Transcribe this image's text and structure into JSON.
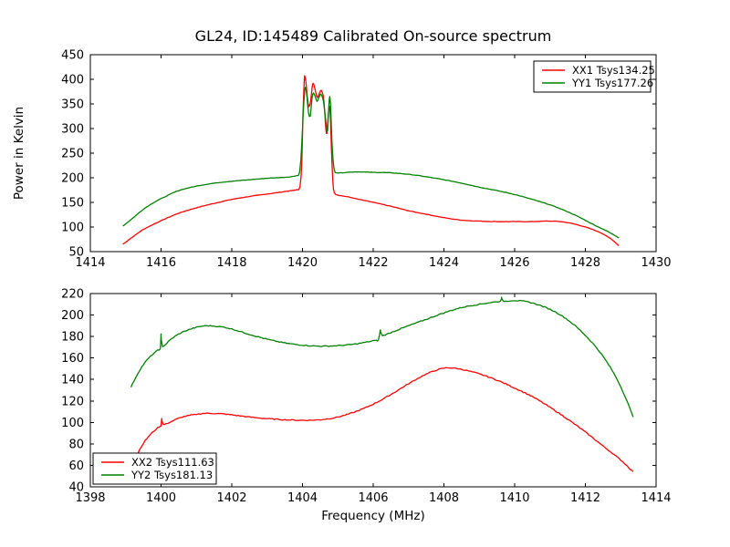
{
  "figure": {
    "title": "GL24, ID:145489 Calibrated On-source spectrum",
    "background": "#ffffff",
    "axis_color": "#000000"
  },
  "chart_data": [
    {
      "type": "line",
      "title": "GL24, ID:145489 Calibrated On-source spectrum",
      "xlabel": "",
      "ylabel": "Power in Kelvin",
      "xlim": [
        1414,
        1430
      ],
      "ylim": [
        50,
        450
      ],
      "xticks": [
        1414,
        1416,
        1418,
        1420,
        1422,
        1424,
        1426,
        1428,
        1430
      ],
      "yticks": [
        50,
        100,
        150,
        200,
        250,
        300,
        350,
        400,
        450
      ],
      "grid": false,
      "legend": {
        "position": "top-right",
        "entries": [
          {
            "label": "XX1 Tsys134.25",
            "color": "#ff0000"
          },
          {
            "label": "YY1 Tsys177.26",
            "color": "#008000"
          }
        ]
      },
      "series": [
        {
          "name": "XX1",
          "color": "#ff0000",
          "noise": 0.8,
          "points": [
            [
              1414.92,
              65
            ],
            [
              1415.2,
              80
            ],
            [
              1415.5,
              95
            ],
            [
              1415.8,
              106
            ],
            [
              1416.1,
              116
            ],
            [
              1416.5,
              128
            ],
            [
              1417.0,
              139
            ],
            [
              1417.5,
              148
            ],
            [
              1418.0,
              156
            ],
            [
              1418.5,
              162
            ],
            [
              1419.0,
              167
            ],
            [
              1419.4,
              171
            ],
            [
              1419.7,
              174
            ],
            [
              1419.85,
              176
            ],
            [
              1419.93,
              182
            ],
            [
              1419.98,
              230
            ],
            [
              1420.01,
              320
            ],
            [
              1420.05,
              398
            ],
            [
              1420.07,
              405
            ],
            [
              1420.1,
              392
            ],
            [
              1420.14,
              362
            ],
            [
              1420.18,
              345
            ],
            [
              1420.23,
              355
            ],
            [
              1420.28,
              388
            ],
            [
              1420.32,
              390
            ],
            [
              1420.37,
              375
            ],
            [
              1420.42,
              363
            ],
            [
              1420.48,
              372
            ],
            [
              1420.53,
              378
            ],
            [
              1420.57,
              371
            ],
            [
              1420.6,
              360
            ],
            [
              1420.63,
              332
            ],
            [
              1420.66,
              300
            ],
            [
              1420.69,
              290
            ],
            [
              1420.73,
              330
            ],
            [
              1420.76,
              345
            ],
            [
              1420.79,
              322
            ],
            [
              1420.82,
              255
            ],
            [
              1420.86,
              192
            ],
            [
              1420.9,
              170
            ],
            [
              1421.0,
              165
            ],
            [
              1421.3,
              161
            ],
            [
              1421.6,
              156
            ],
            [
              1422.0,
              150
            ],
            [
              1422.5,
              142
            ],
            [
              1423.0,
              133
            ],
            [
              1423.5,
              126
            ],
            [
              1424.0,
              119
            ],
            [
              1424.5,
              114
            ],
            [
              1425.0,
              112
            ],
            [
              1425.5,
              111
            ],
            [
              1426.0,
              111
            ],
            [
              1426.5,
              111
            ],
            [
              1427.0,
              112
            ],
            [
              1427.4,
              110
            ],
            [
              1427.8,
              104
            ],
            [
              1428.2,
              95
            ],
            [
              1428.6,
              82
            ],
            [
              1428.95,
              62
            ]
          ]
        },
        {
          "name": "YY1",
          "color": "#008000",
          "noise": 0.8,
          "points": [
            [
              1414.92,
              102
            ],
            [
              1415.2,
              118
            ],
            [
              1415.5,
              136
            ],
            [
              1415.8,
              150
            ],
            [
              1416.1,
              161
            ],
            [
              1416.5,
              174
            ],
            [
              1417.0,
              183
            ],
            [
              1417.5,
              189
            ],
            [
              1418.0,
              193
            ],
            [
              1418.5,
              196
            ],
            [
              1419.0,
              199
            ],
            [
              1419.5,
              201
            ],
            [
              1419.8,
              204
            ],
            [
              1419.92,
              212
            ],
            [
              1419.98,
              270
            ],
            [
              1420.02,
              330
            ],
            [
              1420.06,
              375
            ],
            [
              1420.09,
              383
            ],
            [
              1420.13,
              362
            ],
            [
              1420.17,
              332
            ],
            [
              1420.22,
              325
            ],
            [
              1420.27,
              362
            ],
            [
              1420.31,
              372
            ],
            [
              1420.36,
              365
            ],
            [
              1420.41,
              355
            ],
            [
              1420.46,
              362
            ],
            [
              1420.51,
              370
            ],
            [
              1420.56,
              365
            ],
            [
              1420.6,
              352
            ],
            [
              1420.64,
              328
            ],
            [
              1420.68,
              302
            ],
            [
              1420.71,
              295
            ],
            [
              1420.74,
              340
            ],
            [
              1420.77,
              365
            ],
            [
              1420.8,
              338
            ],
            [
              1420.83,
              278
            ],
            [
              1420.87,
              232
            ],
            [
              1420.91,
              214
            ],
            [
              1421.0,
              210
            ],
            [
              1421.5,
              212
            ],
            [
              1422.0,
              211
            ],
            [
              1422.5,
              210
            ],
            [
              1423.0,
              207
            ],
            [
              1423.5,
              202
            ],
            [
              1424.0,
              196
            ],
            [
              1424.5,
              189
            ],
            [
              1425.0,
              181
            ],
            [
              1425.5,
              174
            ],
            [
              1426.0,
              166
            ],
            [
              1426.5,
              156
            ],
            [
              1427.0,
              145
            ],
            [
              1427.4,
              134
            ],
            [
              1427.8,
              121
            ],
            [
              1428.2,
              106
            ],
            [
              1428.6,
              92
            ],
            [
              1428.95,
              78
            ]
          ]
        }
      ]
    },
    {
      "type": "line",
      "title": "",
      "xlabel": "Frequency (MHz)",
      "ylabel": "",
      "xlim": [
        1398,
        1414
      ],
      "ylim": [
        40,
        220
      ],
      "xticks": [
        1398,
        1400,
        1402,
        1404,
        1406,
        1408,
        1410,
        1412,
        1414
      ],
      "yticks": [
        40,
        60,
        80,
        100,
        120,
        140,
        160,
        180,
        200,
        220
      ],
      "grid": false,
      "legend": {
        "position": "bottom-left",
        "entries": [
          {
            "label": "XX2 Tsys111.63",
            "color": "#ff0000"
          },
          {
            "label": "YY2 Tsys181.13",
            "color": "#008000"
          }
        ]
      },
      "series": [
        {
          "name": "XX2",
          "color": "#ff0000",
          "noise": 0.9,
          "points": [
            [
              1399.2,
              60
            ],
            [
              1399.4,
              75
            ],
            [
              1399.6,
              85
            ],
            [
              1399.8,
              92
            ],
            [
              1399.95,
              96
            ],
            [
              1400.0,
              97
            ],
            [
              1400.02,
              104
            ],
            [
              1400.06,
              98
            ],
            [
              1400.3,
              101
            ],
            [
              1400.6,
              105
            ],
            [
              1401.0,
              107.5
            ],
            [
              1401.3,
              108.5
            ],
            [
              1401.7,
              108
            ],
            [
              1402.0,
              107
            ],
            [
              1402.5,
              105
            ],
            [
              1403.0,
              103.5
            ],
            [
              1403.5,
              102.5
            ],
            [
              1404.0,
              102
            ],
            [
              1404.5,
              102.5
            ],
            [
              1405.0,
              105
            ],
            [
              1405.5,
              110
            ],
            [
              1406.0,
              117
            ],
            [
              1406.5,
              126
            ],
            [
              1407.0,
              136
            ],
            [
              1407.5,
              145
            ],
            [
              1408.0,
              150.5
            ],
            [
              1408.4,
              150
            ],
            [
              1408.8,
              147
            ],
            [
              1409.2,
              143
            ],
            [
              1409.6,
              138
            ],
            [
              1410.0,
              132
            ],
            [
              1410.5,
              124
            ],
            [
              1411.0,
              114
            ],
            [
              1411.5,
              103
            ],
            [
              1412.0,
              91
            ],
            [
              1412.5,
              78
            ],
            [
              1413.0,
              65
            ],
            [
              1413.35,
              54
            ]
          ]
        },
        {
          "name": "YY2",
          "color": "#008000",
          "noise": 0.9,
          "points": [
            [
              1399.15,
              133
            ],
            [
              1399.35,
              146
            ],
            [
              1399.55,
              156
            ],
            [
              1399.75,
              163
            ],
            [
              1399.9,
              167
            ],
            [
              1399.98,
              169
            ],
            [
              1400.0,
              182
            ],
            [
              1400.04,
              171
            ],
            [
              1400.3,
              178
            ],
            [
              1400.6,
              184
            ],
            [
              1401.0,
              188.5
            ],
            [
              1401.3,
              190
            ],
            [
              1401.7,
              189
            ],
            [
              1402.0,
              187
            ],
            [
              1402.5,
              182
            ],
            [
              1403.0,
              177.5
            ],
            [
              1403.5,
              174
            ],
            [
              1404.0,
              172
            ],
            [
              1404.5,
              171
            ],
            [
              1405.0,
              171.5
            ],
            [
              1405.5,
              173
            ],
            [
              1406.0,
              176
            ],
            [
              1406.15,
              177
            ],
            [
              1406.2,
              186
            ],
            [
              1406.26,
              181
            ],
            [
              1406.6,
              185
            ],
            [
              1407.0,
              190
            ],
            [
              1407.5,
              196
            ],
            [
              1408.0,
              202
            ],
            [
              1408.5,
              207
            ],
            [
              1409.0,
              210
            ],
            [
              1409.4,
              212
            ],
            [
              1409.6,
              213
            ],
            [
              1409.63,
              217
            ],
            [
              1409.67,
              213
            ],
            [
              1410.0,
              213.5
            ],
            [
              1410.4,
              212
            ],
            [
              1410.8,
              208
            ],
            [
              1411.2,
              202
            ],
            [
              1411.6,
              193
            ],
            [
              1412.0,
              181
            ],
            [
              1412.4,
              166
            ],
            [
              1412.8,
              146
            ],
            [
              1413.1,
              126
            ],
            [
              1413.35,
              105
            ]
          ]
        }
      ]
    }
  ]
}
